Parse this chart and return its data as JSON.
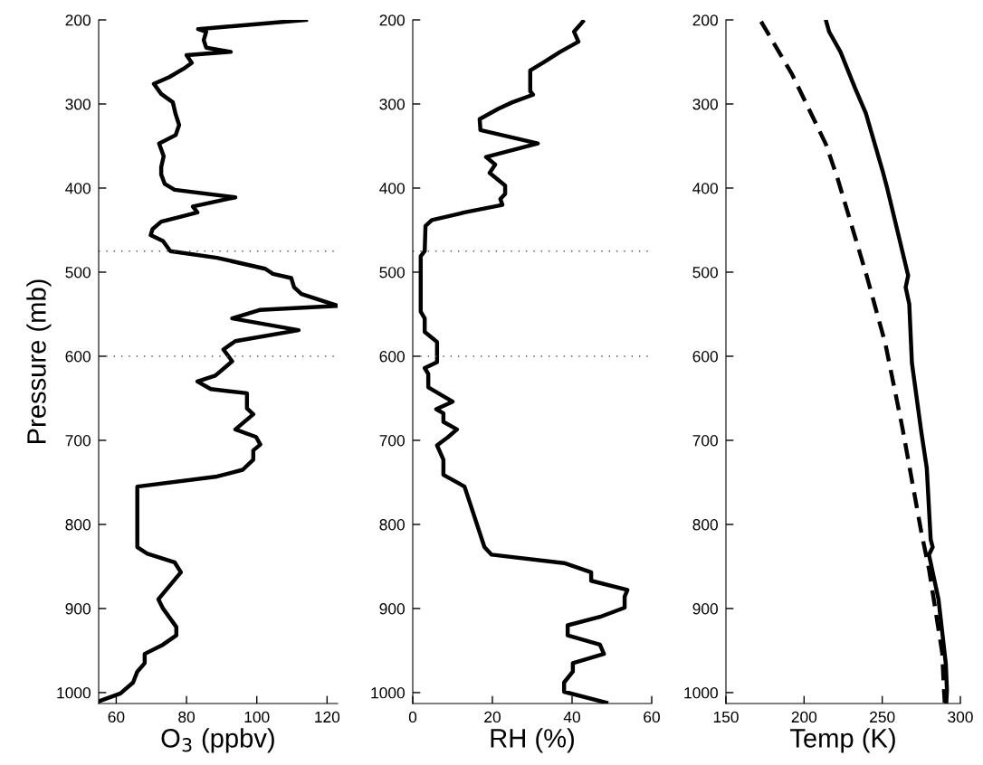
{
  "chart_data": [
    {
      "type": "line",
      "xlabel": "O$_{3}$ (ppbv)",
      "ylabel": "Pressure (mb)",
      "xlim": [
        55,
        123
      ],
      "xticks": [
        60,
        80,
        100,
        120
      ],
      "ylim": [
        1013,
        200
      ],
      "yticks": [
        200,
        300,
        400,
        500,
        600,
        700,
        800,
        900,
        1000
      ],
      "grid": false,
      "legend": false,
      "ref_lines": [
        {
          "axis": "y",
          "value": 475,
          "color": "#555555",
          "line_style": "dotted"
        },
        {
          "axis": "y",
          "value": 600,
          "color": "#555555",
          "line_style": "dotted"
        }
      ],
      "series": [
        {
          "color": "#000000",
          "line_style": "solid",
          "x": [
            114,
            83.3,
            85.6,
            84.9,
            85.6,
            92.6,
            80,
            81.5,
            79.2,
            75.1,
            70.7,
            72.8,
            76.1,
            76.9,
            77.9,
            76.9,
            72.2,
            73.5,
            72.8,
            72.8,
            73.8,
            76.6,
            93.9,
            81.8,
            83.1,
            78.4,
            72.8,
            70.3,
            69.8,
            73.3,
            75.4,
            88.7,
            102.4,
            104.6,
            109.8,
            110.6,
            112.7,
            123,
            100.8,
            93,
            111.9,
            93.9,
            90.5,
            93,
            88.2,
            83.1,
            86.9,
            97.2,
            97.2,
            99,
            93.9,
            99.8,
            101,
            99,
            99,
            96,
            88.7,
            66,
            66,
            68.9,
            76.6,
            78.4,
            72,
            73.3,
            77.1,
            77.1,
            73.3,
            68.1,
            68.1,
            66,
            64.8,
            61.2,
            55.3
          ],
          "values": [
            200,
            211,
            214,
            224,
            233,
            238,
            242,
            251,
            258,
            268,
            276,
            288,
            298,
            312,
            325,
            337,
            347,
            362,
            375,
            384,
            395,
            402,
            411,
            422,
            429,
            434,
            440,
            449,
            456,
            463,
            475,
            483,
            496,
            502,
            507,
            518,
            526,
            540,
            545,
            555,
            569,
            582,
            592,
            606,
            623,
            630,
            639,
            644,
            662,
            669,
            687,
            696,
            705,
            712,
            723,
            735,
            743,
            755,
            827,
            835,
            845,
            857,
            889,
            900,
            922,
            932,
            943,
            954,
            965,
            975,
            988,
            1001,
            1010
          ]
        }
      ]
    },
    {
      "type": "line",
      "xlabel": "RH (%)",
      "xlim": [
        0,
        60
      ],
      "xticks": [
        0,
        20,
        40,
        60
      ],
      "ylim": [
        1013,
        200
      ],
      "yticks": [
        200,
        300,
        400,
        500,
        600,
        700,
        800,
        900,
        1000
      ],
      "grid": false,
      "legend": false,
      "ref_lines": [
        {
          "axis": "y",
          "value": 475,
          "color": "#555555",
          "line_style": "dotted"
        },
        {
          "axis": "y",
          "value": 600,
          "color": "#555555",
          "line_style": "dotted"
        }
      ],
      "series": [
        {
          "color": "#000000",
          "line_style": "solid",
          "x": [
            42.7,
            42,
            40.5,
            41.6,
            37,
            32.7,
            29.5,
            29.5,
            30.2,
            25,
            21.4,
            16.8,
            17,
            31.4,
            18.4,
            20.7,
            19.3,
            19.8,
            23.2,
            23.2,
            22,
            22.5,
            13,
            4.8,
            3.2,
            3,
            2,
            2,
            3,
            3,
            4.8,
            6.1,
            6.1,
            3,
            3.9,
            3.9,
            10,
            5.9,
            7.7,
            7.7,
            11.1,
            8.9,
            6.1,
            7.7,
            7.7,
            13,
            18,
            19.8,
            38,
            44.8,
            44.8,
            53.9,
            53.2,
            53.2,
            47,
            38.9,
            38.9,
            47,
            48,
            40.2,
            40.2,
            38,
            38,
            48.6
          ],
          "values": [
            202,
            206,
            214,
            226,
            238,
            251,
            260,
            285,
            289,
            298,
            306,
            318,
            331,
            347,
            363,
            372,
            382,
            384,
            397,
            407,
            413,
            420,
            429,
            438,
            445,
            475,
            481,
            547,
            555,
            571,
            578,
            583,
            607,
            614,
            621,
            637,
            654,
            663,
            668,
            678,
            687,
            696,
            706,
            723,
            741,
            755,
            827,
            836,
            846,
            857,
            867,
            878,
            886,
            899,
            910,
            920,
            932,
            943,
            954,
            965,
            975,
            988,
            999,
            1012
          ]
        }
      ]
    },
    {
      "type": "line",
      "xlabel": "Temp (K)",
      "xlim": [
        150,
        300
      ],
      "xticks": [
        150,
        200,
        250,
        300
      ],
      "ylim": [
        1013,
        200
      ],
      "yticks": [
        200,
        300,
        400,
        500,
        600,
        700,
        800,
        900,
        1000
      ],
      "grid": false,
      "legend": false,
      "series": [
        {
          "color": "#000000",
          "line_style": "solid",
          "x": [
            214.2,
            216,
            223.3,
            232.6,
            239.5,
            250.6,
            253.3,
            266.6,
            265,
            267.3,
            269,
            275,
            278.5,
            281,
            282.3,
            279.9,
            286,
            290.7,
            291.4,
            291
          ],
          "values": [
            202,
            214,
            238,
            281,
            311,
            382,
            401,
            504,
            518,
            538,
            608,
            690,
            733,
            818,
            827,
            836,
            889,
            966,
            997,
            1012
          ]
        },
        {
          "color": "#000000",
          "line_style": "dashed",
          "x": [
            172.5,
            192.4,
            214,
            221.5,
            240,
            252,
            262.8,
            275,
            280,
            288.4,
            289.5,
            290
          ],
          "values": [
            202,
            265,
            348,
            389,
            504,
            585,
            684,
            809,
            854,
            953,
            997,
            1012
          ]
        }
      ]
    }
  ]
}
